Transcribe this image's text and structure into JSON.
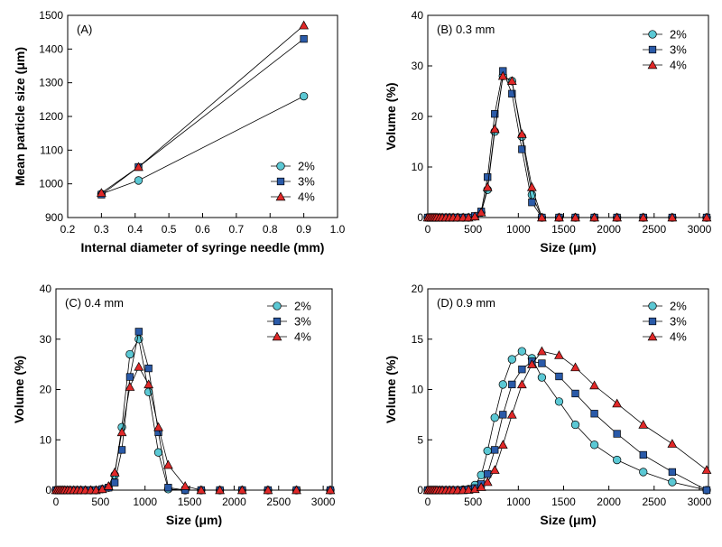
{
  "chart_data": [
    {
      "id": "A",
      "type": "line",
      "title": "(A)",
      "xlabel": "Internal diameter of syringe needle (mm)",
      "ylabel": "Mean particle size (μm)",
      "xlim": [
        0.2,
        1.0
      ],
      "ylim": [
        900,
        1500
      ],
      "xticks": [
        0.2,
        0.3,
        0.4,
        0.5,
        0.6,
        0.7,
        0.8,
        0.9,
        1.0
      ],
      "xtick_labels": [
        "0.2",
        "0.3",
        "0.4",
        "0.5",
        "0.6",
        "0.7",
        "0.8",
        "0.9",
        "1.0"
      ],
      "yticks": [
        900,
        1000,
        1100,
        1200,
        1300,
        1400,
        1500
      ],
      "ytick_labels": [
        "900",
        "1000",
        "1100",
        "1200",
        "1300",
        "1400",
        "1500"
      ],
      "legend_position": "bottom-right",
      "series": [
        {
          "name": "2%",
          "marker": "circle",
          "color": "#5bc8d4",
          "x": [
            0.3,
            0.41,
            0.9
          ],
          "y": [
            970,
            1010,
            1260
          ]
        },
        {
          "name": "3%",
          "marker": "square",
          "color": "#2a5aa8",
          "x": [
            0.3,
            0.41,
            0.9
          ],
          "y": [
            968,
            1050,
            1430
          ]
        },
        {
          "name": "4%",
          "marker": "triangle",
          "color": "#e02828",
          "x": [
            0.3,
            0.41,
            0.9
          ],
          "y": [
            973,
            1050,
            1470
          ]
        }
      ]
    },
    {
      "id": "B",
      "type": "line",
      "title": "(B) 0.3 mm",
      "xlabel": "Size (μm)",
      "ylabel": "Volume (%)",
      "xlim": [
        0,
        3100
      ],
      "ylim": [
        0,
        40
      ],
      "xticks": [
        0,
        500,
        1000,
        1500,
        2000,
        2500,
        3000
      ],
      "xtick_labels": [
        "0",
        "500",
        "1000",
        "1500",
        "2000",
        "2500",
        "3000"
      ],
      "yticks": [
        0,
        10,
        20,
        30,
        40
      ],
      "ytick_labels": [
        "0",
        "10",
        "20",
        "30",
        "40"
      ],
      "legend_position": "top-right",
      "series": [
        {
          "name": "2%",
          "marker": "circle",
          "color": "#5bc8d4",
          "x": [
            0,
            20,
            40,
            60,
            80,
            100,
            130,
            160,
            200,
            240,
            280,
            330,
            390,
            450,
            520,
            590,
            660,
            740,
            830,
            930,
            1040,
            1150,
            1260,
            1450,
            1630,
            1840,
            2090,
            2380,
            2700,
            3080
          ],
          "y": [
            0,
            0,
            0,
            0,
            0,
            0,
            0,
            0,
            0,
            0,
            0,
            0,
            0,
            0,
            0.2,
            1,
            5.5,
            17,
            28,
            27,
            16,
            4.5,
            0,
            0,
            0,
            0,
            0,
            0,
            0,
            0
          ]
        },
        {
          "name": "3%",
          "marker": "square",
          "color": "#2a5aa8",
          "x": [
            0,
            20,
            40,
            60,
            80,
            100,
            130,
            160,
            200,
            240,
            280,
            330,
            390,
            450,
            520,
            590,
            660,
            740,
            830,
            930,
            1040,
            1150,
            1260,
            1450,
            1630,
            1840,
            2090,
            2380,
            2700,
            3080
          ],
          "y": [
            0,
            0,
            0,
            0,
            0,
            0,
            0,
            0,
            0,
            0,
            0,
            0,
            0,
            0,
            0.3,
            1.2,
            8,
            20.5,
            29,
            24.5,
            13.5,
            3,
            0,
            0,
            0,
            0,
            0,
            0,
            0,
            0
          ]
        },
        {
          "name": "4%",
          "marker": "triangle",
          "color": "#e02828",
          "x": [
            0,
            20,
            40,
            60,
            80,
            100,
            130,
            160,
            200,
            240,
            280,
            330,
            390,
            450,
            520,
            590,
            660,
            740,
            830,
            930,
            1040,
            1150,
            1260,
            1450,
            1630,
            1840,
            2090,
            2380,
            2700,
            3080
          ],
          "y": [
            0,
            0,
            0,
            0,
            0,
            0,
            0,
            0,
            0,
            0,
            0,
            0,
            0,
            0,
            0.2,
            1,
            6,
            17.5,
            28,
            27,
            16.5,
            6,
            0,
            0,
            0,
            0,
            0,
            0,
            0,
            0
          ]
        }
      ]
    },
    {
      "id": "C",
      "type": "line",
      "title": "(C) 0.4 mm",
      "xlabel": "Size (μm)",
      "ylabel": "Volume (%)",
      "xlim": [
        0,
        3100
      ],
      "ylim": [
        0,
        40
      ],
      "xticks": [
        0,
        500,
        1000,
        1500,
        2000,
        2500,
        3000
      ],
      "xtick_labels": [
        "0",
        "500",
        "1000",
        "1500",
        "2000",
        "2500",
        "3000"
      ],
      "yticks": [
        0,
        10,
        20,
        30,
        40
      ],
      "ytick_labels": [
        "0",
        "10",
        "20",
        "30",
        "40"
      ],
      "legend_position": "top-right",
      "series": [
        {
          "name": "2%",
          "marker": "circle",
          "color": "#5bc8d4",
          "x": [
            0,
            20,
            40,
            60,
            80,
            100,
            130,
            160,
            200,
            240,
            280,
            330,
            390,
            450,
            520,
            590,
            660,
            740,
            830,
            930,
            1040,
            1150,
            1260,
            1450,
            1630,
            1840,
            2090,
            2380,
            2700,
            3080
          ],
          "y": [
            0,
            0,
            0,
            0,
            0,
            0,
            0,
            0,
            0,
            0,
            0,
            0,
            0,
            0,
            0.2,
            0.5,
            3,
            12.5,
            27,
            30,
            19.5,
            7.5,
            0.2,
            0,
            0,
            0,
            0,
            0,
            0,
            0
          ]
        },
        {
          "name": "3%",
          "marker": "square",
          "color": "#2a5aa8",
          "x": [
            0,
            20,
            40,
            60,
            80,
            100,
            130,
            160,
            200,
            240,
            280,
            330,
            390,
            450,
            520,
            590,
            660,
            740,
            830,
            930,
            1040,
            1150,
            1260,
            1450,
            1630,
            1840,
            2090,
            2380,
            2700,
            3080
          ],
          "y": [
            0,
            0,
            0,
            0,
            0,
            0,
            0,
            0,
            0,
            0,
            0,
            0,
            0,
            0,
            0.2,
            0.5,
            1.5,
            8,
            22.5,
            31.5,
            24.2,
            11.5,
            0.5,
            0,
            0,
            0,
            0,
            0,
            0,
            0
          ]
        },
        {
          "name": "4%",
          "marker": "triangle",
          "color": "#e02828",
          "x": [
            0,
            20,
            40,
            60,
            80,
            100,
            130,
            160,
            200,
            240,
            280,
            330,
            390,
            450,
            520,
            590,
            660,
            740,
            830,
            930,
            1040,
            1150,
            1260,
            1450,
            1630,
            1840,
            2090,
            2380,
            2700,
            3080
          ],
          "y": [
            0,
            0,
            0,
            0,
            0,
            0,
            0,
            0,
            0,
            0,
            0,
            0,
            0,
            0,
            0.2,
            0.8,
            3.5,
            11.5,
            20.5,
            24.5,
            21,
            12.5,
            5,
            0.8,
            0,
            0,
            0,
            0,
            0,
            0
          ]
        }
      ]
    },
    {
      "id": "D",
      "type": "line",
      "title": "(D) 0.9 mm",
      "xlabel": "Size (μm)",
      "ylabel": "Volume (%)",
      "xlim": [
        0,
        3100
      ],
      "ylim": [
        0,
        20
      ],
      "xticks": [
        0,
        500,
        1000,
        1500,
        2000,
        2500,
        3000
      ],
      "xtick_labels": [
        "0",
        "500",
        "1000",
        "1500",
        "2000",
        "2500",
        "3000"
      ],
      "yticks": [
        0,
        5,
        10,
        15,
        20
      ],
      "ytick_labels": [
        "0",
        "5",
        "10",
        "15",
        "20"
      ],
      "legend_position": "top-right",
      "series": [
        {
          "name": "2%",
          "marker": "circle",
          "color": "#5bc8d4",
          "x": [
            0,
            20,
            40,
            60,
            80,
            100,
            130,
            160,
            200,
            240,
            280,
            330,
            390,
            450,
            520,
            590,
            660,
            740,
            830,
            930,
            1040,
            1150,
            1260,
            1450,
            1630,
            1840,
            2090,
            2380,
            2700,
            3080
          ],
          "y": [
            0,
            0,
            0,
            0,
            0,
            0,
            0,
            0,
            0,
            0,
            0,
            0,
            0.05,
            0.1,
            0.5,
            1.5,
            3.9,
            7.2,
            10.5,
            13,
            13.8,
            13.1,
            11.2,
            8.8,
            6.5,
            4.5,
            3,
            1.8,
            0.8,
            0
          ]
        },
        {
          "name": "3%",
          "marker": "square",
          "color": "#2a5aa8",
          "x": [
            0,
            20,
            40,
            60,
            80,
            100,
            130,
            160,
            200,
            240,
            280,
            330,
            390,
            450,
            520,
            590,
            660,
            740,
            830,
            930,
            1040,
            1150,
            1260,
            1450,
            1630,
            1840,
            2090,
            2380,
            2700,
            3080
          ],
          "y": [
            0,
            0,
            0,
            0,
            0,
            0,
            0,
            0,
            0,
            0,
            0,
            0,
            0,
            0.05,
            0.2,
            0.6,
            1.6,
            4,
            7.5,
            10.5,
            12,
            12.8,
            12.6,
            11.3,
            9.6,
            7.6,
            5.6,
            3.5,
            1.8,
            0
          ]
        },
        {
          "name": "4%",
          "marker": "triangle",
          "color": "#e02828",
          "x": [
            0,
            20,
            40,
            60,
            80,
            100,
            130,
            160,
            200,
            240,
            280,
            330,
            390,
            450,
            520,
            590,
            660,
            740,
            830,
            930,
            1040,
            1150,
            1260,
            1450,
            1630,
            1840,
            2090,
            2380,
            2700,
            3080
          ],
          "y": [
            0,
            0,
            0,
            0,
            0,
            0,
            0,
            0,
            0,
            0,
            0,
            0,
            0,
            0.03,
            0.1,
            0.3,
            0.8,
            2,
            4.5,
            7.5,
            10.5,
            12.5,
            13.8,
            13.4,
            12.2,
            10.4,
            8.6,
            6.5,
            4.6,
            2
          ]
        }
      ]
    }
  ]
}
